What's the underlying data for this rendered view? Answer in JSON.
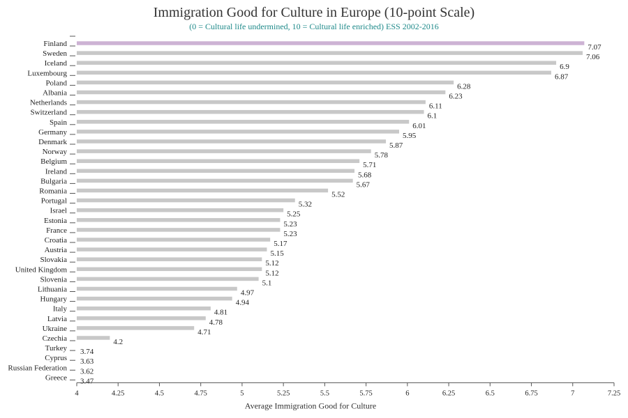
{
  "header": {
    "title": "Immigration Good for Culture in Europe (10-point Scale)",
    "subtitle": "(0 = Cultural life undermined, 10 = Cultural life enriched) ESS 2002-2016"
  },
  "chart_data": {
    "type": "bar",
    "orientation": "horizontal",
    "title": "Immigration Good for Culture in Europe (10-point Scale)",
    "subtitle": "(0 = Cultural life undermined, 10 = Cultural life enriched) ESS 2002-2016",
    "xlabel": "Average Immigration Good for Culture",
    "ylabel": "",
    "xlim": [
      4,
      7.25
    ],
    "xticks": [
      "4",
      "4.25",
      "4.5",
      "4.75",
      "5",
      "5.25",
      "5.5",
      "5.75",
      "6",
      "6.25",
      "6.5",
      "6.75",
      "7",
      "7.25"
    ],
    "grid": false,
    "categories": [
      "Finland",
      "Sweden",
      "Iceland",
      "Luxembourg",
      "Poland",
      "Albania",
      "Netherlands",
      "Switzerland",
      "Spain",
      "Germany",
      "Denmark",
      "Norway",
      "Belgium",
      "Ireland",
      "Bulgaria",
      "Romania",
      "Portugal",
      "Israel",
      "Estonia",
      "France",
      "Croatia",
      "Austria",
      "Slovakia",
      "United Kingdom",
      "Slovenia",
      "Lithuania",
      "Hungary",
      "Italy",
      "Latvia",
      "Ukraine",
      "Czechia",
      "Turkey",
      "Cyprus",
      "Russian Federation",
      "Greece"
    ],
    "values": [
      7.07,
      7.06,
      6.9,
      6.87,
      6.28,
      6.23,
      6.11,
      6.1,
      6.01,
      5.95,
      5.87,
      5.78,
      5.71,
      5.68,
      5.67,
      5.52,
      5.32,
      5.25,
      5.23,
      5.23,
      5.17,
      5.15,
      5.12,
      5.12,
      5.1,
      4.97,
      4.94,
      4.81,
      4.78,
      4.71,
      4.2,
      3.74,
      3.63,
      3.62,
      3.47
    ],
    "value_labels": [
      "7.07",
      "7.06",
      "6.9",
      "6.87",
      "6.28",
      "6.23",
      "6.11",
      "6.1",
      "6.01",
      "5.95",
      "5.87",
      "5.78",
      "5.71",
      "5.68",
      "5.67",
      "5.52",
      "5.32",
      "5.25",
      "5.23",
      "5.23",
      "5.17",
      "5.15",
      "5.12",
      "5.12",
      "5.1",
      "4.97",
      "4.94",
      "4.81",
      "4.78",
      "4.71",
      "4.2",
      "3.74",
      "3.63",
      "3.62",
      "3.47"
    ],
    "highlight": "Finland",
    "colors": {
      "bar": "#c8c8c8",
      "highlight": "#cdb3d4",
      "axis": "#555555",
      "text": "#222222",
      "subtitle": "#1f8a8a"
    }
  }
}
